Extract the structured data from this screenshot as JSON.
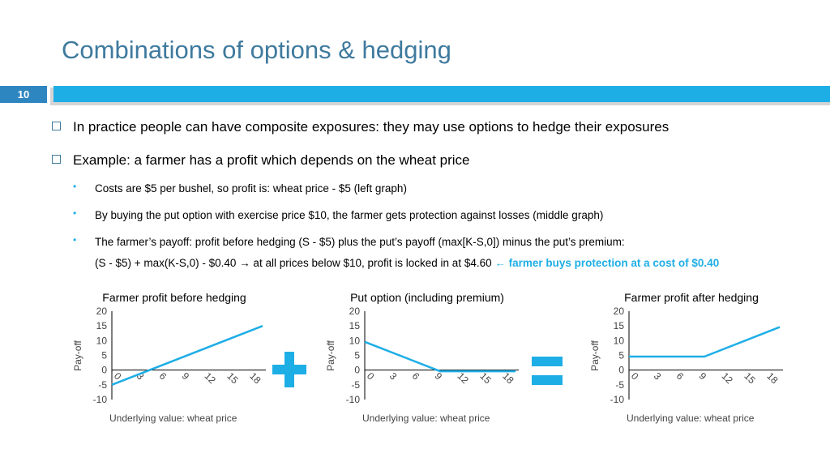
{
  "slide": {
    "title": "Combinations of options & hedging",
    "number": "10"
  },
  "bullets": [
    "In practice people can have composite exposures: they may use options to hedge their exposures",
    "Example: a farmer has a profit which depends on the wheat price"
  ],
  "sub_bullets": [
    "Costs are $5 per bushel, so profit is: wheat price - $5 (left graph)",
    "By buying the put option with exercise price $10, the farmer gets protection against losses (middle graph)",
    "The farmer’s payoff: profit before hedging (S - $5) plus the put’s payoff (max[K-S,0]) minus the put’s premium:"
  ],
  "formula": {
    "text": "(S - $5) + max(K-S,0) - $0.40 → at all prices below $10, profit is locked in at $4.60",
    "highlight": "← farmer buys protection at a cost of $0.40"
  },
  "colors": {
    "accent": "#1eaee6",
    "title": "#3f7a9e",
    "line": "#1eaee6"
  },
  "operators": {
    "plus": "plus-icon",
    "equals": "equals-icon"
  },
  "chart_data": [
    {
      "type": "line",
      "title": "Farmer profit before hedging",
      "xlabel": "Underlying value: wheat price",
      "ylabel": "Pay-off",
      "ylim": [
        -10,
        20
      ],
      "yticks": [
        "-10",
        "-5",
        "0",
        "5",
        "10",
        "15",
        "20"
      ],
      "xticks": [
        "0",
        "3",
        "6",
        "9",
        "12",
        "15",
        "18"
      ],
      "series": [
        {
          "x": [
            0,
            20
          ],
          "y": [
            -5,
            15
          ]
        }
      ]
    },
    {
      "type": "line",
      "title": "Put option (including premium)",
      "xlabel": "Underlying value: wheat price",
      "ylabel": "Pay-off",
      "ylim": [
        -10,
        20
      ],
      "yticks": [
        "-10",
        "-5",
        "0",
        "5",
        "10",
        "15",
        "20"
      ],
      "xticks": [
        "0",
        "3",
        "6",
        "9",
        "12",
        "15",
        "18"
      ],
      "series": [
        {
          "x": [
            0,
            10,
            20
          ],
          "y": [
            9.6,
            -0.4,
            -0.4
          ]
        }
      ]
    },
    {
      "type": "line",
      "title": "Farmer profit after hedging",
      "xlabel": "Underlying value: wheat price",
      "ylabel": "Pay-off",
      "ylim": [
        -10,
        20
      ],
      "yticks": [
        "-10",
        "-5",
        "0",
        "5",
        "10",
        "15",
        "20"
      ],
      "xticks": [
        "0",
        "3",
        "6",
        "9",
        "12",
        "15",
        "18"
      ],
      "series": [
        {
          "x": [
            0,
            10,
            20
          ],
          "y": [
            4.6,
            4.6,
            14.6
          ]
        }
      ]
    }
  ]
}
